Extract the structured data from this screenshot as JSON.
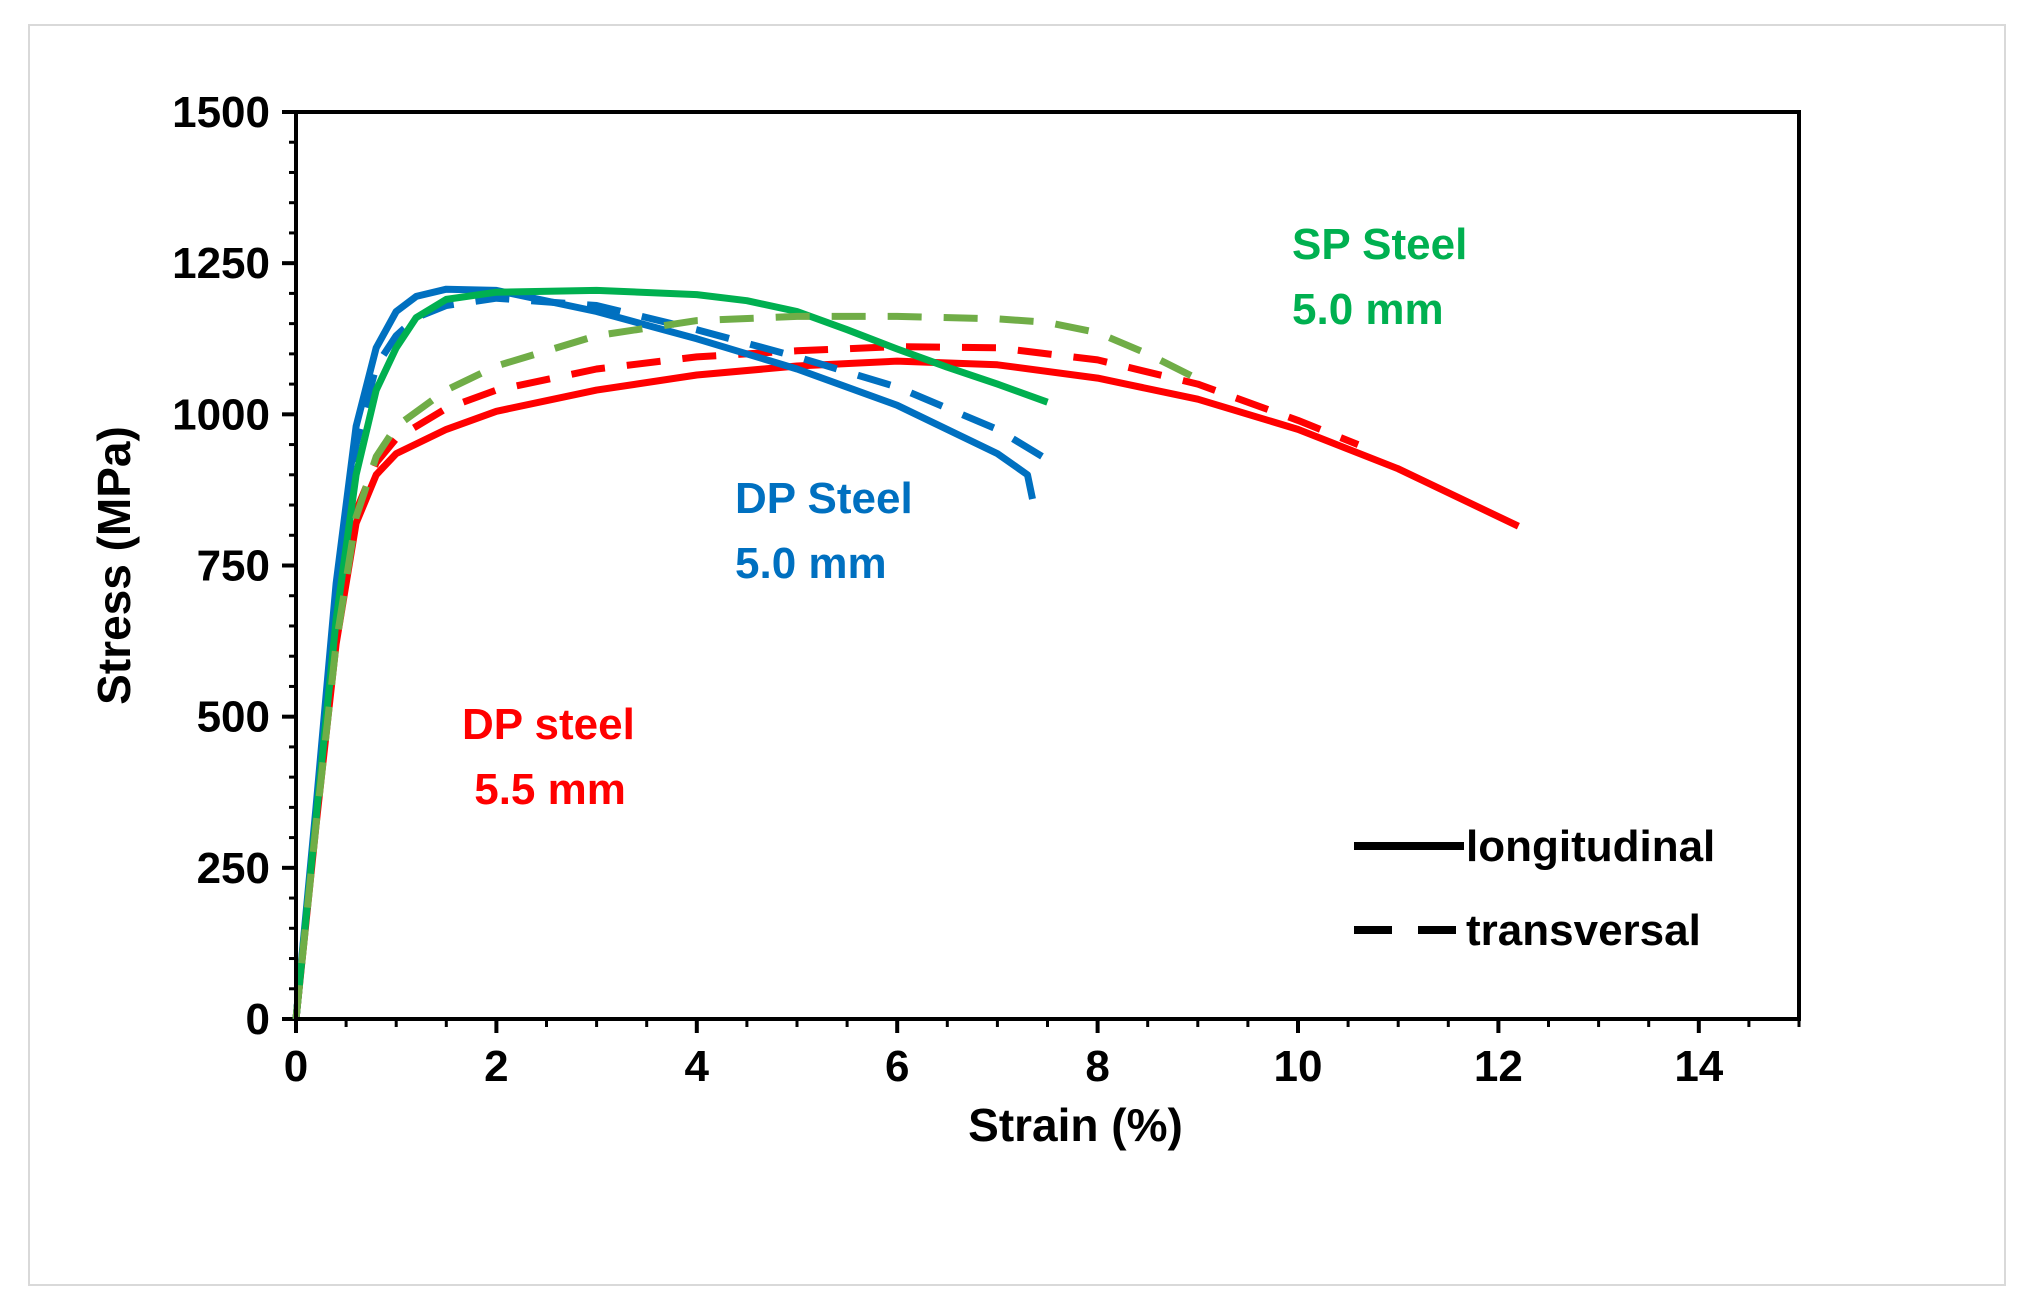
{
  "chart_data": {
    "type": "line",
    "title": "",
    "xlabel": "Strain (%)",
    "ylabel": "Stress (MPa)",
    "xlim": [
      0,
      15
    ],
    "ylim": [
      0,
      1500
    ],
    "xticks": [
      0,
      2,
      4,
      6,
      8,
      10,
      12,
      14
    ],
    "yticks": [
      0,
      250,
      500,
      750,
      1000,
      1250,
      1500
    ],
    "grid": false,
    "legend": {
      "position": "bottom-right",
      "entries": [
        {
          "label": "longitudinal",
          "style": "solid"
        },
        {
          "label": "transversal",
          "style": "dashed"
        }
      ]
    },
    "annotations": [
      {
        "line1": "SP Steel",
        "line2": "5.0 mm",
        "color": "#00b050"
      },
      {
        "line1": "DP Steel",
        "line2": "5.0 mm",
        "color": "#0070c0"
      },
      {
        "line1": "DP steel",
        "line2": " 5.5 mm",
        "color": "#ff0000"
      }
    ],
    "series": [
      {
        "name": "DP steel 5.5 mm longitudinal",
        "color": "#ff0000",
        "style": "solid",
        "points": [
          [
            0,
            0
          ],
          [
            0.2,
            320
          ],
          [
            0.4,
            620
          ],
          [
            0.6,
            820
          ],
          [
            0.8,
            900
          ],
          [
            1.0,
            935
          ],
          [
            1.5,
            975
          ],
          [
            2,
            1005
          ],
          [
            3,
            1040
          ],
          [
            4,
            1065
          ],
          [
            5,
            1080
          ],
          [
            6,
            1088
          ],
          [
            7,
            1082
          ],
          [
            8,
            1060
          ],
          [
            9,
            1025
          ],
          [
            10,
            975
          ],
          [
            11,
            910
          ],
          [
            12.2,
            815
          ]
        ]
      },
      {
        "name": "DP steel 5.5 mm transversal",
        "color": "#ff0000",
        "style": "dashed",
        "points": [
          [
            0,
            0
          ],
          [
            0.2,
            330
          ],
          [
            0.4,
            640
          ],
          [
            0.6,
            840
          ],
          [
            0.8,
            920
          ],
          [
            1.0,
            960
          ],
          [
            1.5,
            1010
          ],
          [
            2,
            1040
          ],
          [
            3,
            1075
          ],
          [
            4,
            1095
          ],
          [
            5,
            1105
          ],
          [
            6,
            1112
          ],
          [
            7,
            1110
          ],
          [
            8,
            1090
          ],
          [
            9,
            1050
          ],
          [
            10,
            990
          ],
          [
            10.6,
            950
          ]
        ]
      },
      {
        "name": "DP Steel 5.0 mm longitudinal",
        "color": "#0070c0",
        "style": "solid",
        "points": [
          [
            0,
            0
          ],
          [
            0.2,
            350
          ],
          [
            0.4,
            720
          ],
          [
            0.6,
            980
          ],
          [
            0.8,
            1110
          ],
          [
            1.0,
            1170
          ],
          [
            1.2,
            1195
          ],
          [
            1.5,
            1207
          ],
          [
            2,
            1205
          ],
          [
            3,
            1170
          ],
          [
            4,
            1125
          ],
          [
            5,
            1075
          ],
          [
            6,
            1015
          ],
          [
            7,
            935
          ],
          [
            7.3,
            900
          ],
          [
            7.35,
            860
          ]
        ]
      },
      {
        "name": "DP Steel 5.0 mm transversal",
        "color": "#0070c0",
        "style": "dashed",
        "points": [
          [
            0,
            0
          ],
          [
            0.2,
            340
          ],
          [
            0.4,
            700
          ],
          [
            0.6,
            950
          ],
          [
            0.8,
            1080
          ],
          [
            1.0,
            1130
          ],
          [
            1.2,
            1160
          ],
          [
            1.5,
            1180
          ],
          [
            2,
            1192
          ],
          [
            3,
            1180
          ],
          [
            4,
            1140
          ],
          [
            5,
            1095
          ],
          [
            6,
            1045
          ],
          [
            7,
            975
          ],
          [
            7.5,
            925
          ]
        ]
      },
      {
        "name": "SP Steel 5.0 mm longitudinal",
        "color": "#00b050",
        "style": "solid",
        "points": [
          [
            0,
            0
          ],
          [
            0.2,
            330
          ],
          [
            0.4,
            660
          ],
          [
            0.6,
            900
          ],
          [
            0.8,
            1040
          ],
          [
            1.0,
            1110
          ],
          [
            1.2,
            1160
          ],
          [
            1.5,
            1190
          ],
          [
            2,
            1202
          ],
          [
            3,
            1205
          ],
          [
            4,
            1198
          ],
          [
            4.5,
            1188
          ],
          [
            5,
            1170
          ],
          [
            5.5,
            1140
          ],
          [
            6,
            1108
          ],
          [
            6.5,
            1078
          ],
          [
            7,
            1050
          ],
          [
            7.5,
            1020
          ]
        ]
      },
      {
        "name": "SP Steel 5.0 mm transversal",
        "color": "#70ad47",
        "style": "dashed",
        "points": [
          [
            0,
            0
          ],
          [
            0.2,
            320
          ],
          [
            0.4,
            620
          ],
          [
            0.6,
            830
          ],
          [
            0.8,
            930
          ],
          [
            1.0,
            980
          ],
          [
            1.5,
            1040
          ],
          [
            2,
            1080
          ],
          [
            3,
            1130
          ],
          [
            4,
            1155
          ],
          [
            5,
            1162
          ],
          [
            6,
            1162
          ],
          [
            7,
            1158
          ],
          [
            7.5,
            1152
          ],
          [
            8,
            1135
          ],
          [
            8.5,
            1100
          ],
          [
            9.1,
            1050
          ]
        ]
      }
    ]
  }
}
